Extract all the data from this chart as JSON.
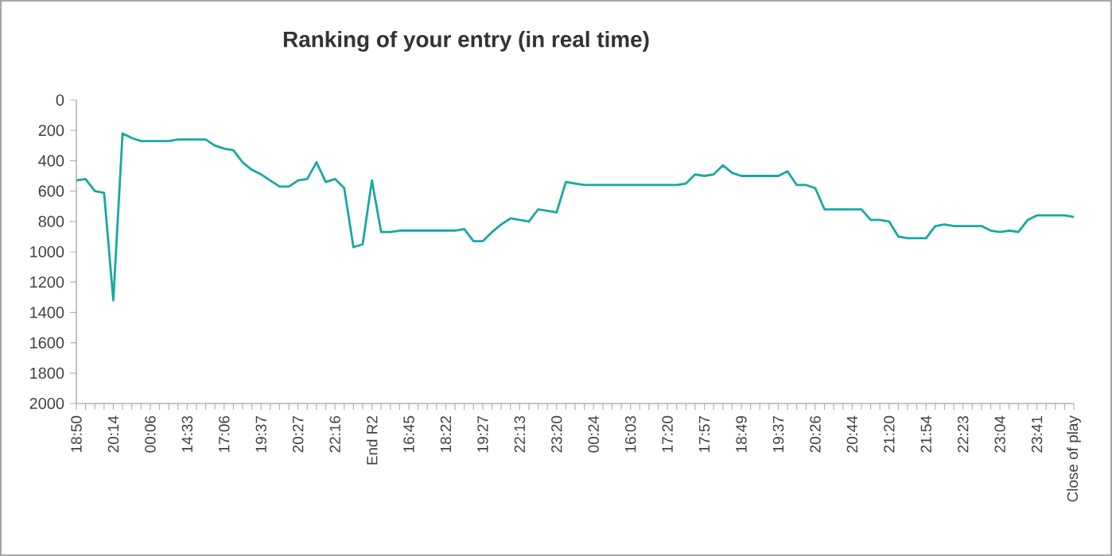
{
  "chart_data": {
    "type": "line",
    "title": "Ranking of your entry (in real time)",
    "categories": [
      "18:50",
      null,
      null,
      null,
      "20:14",
      null,
      null,
      null,
      "00:06",
      null,
      null,
      null,
      "14:33",
      null,
      null,
      null,
      "17:06",
      null,
      null,
      null,
      "19:37",
      null,
      null,
      null,
      "20:27",
      null,
      null,
      null,
      "22:16",
      null,
      null,
      null,
      "End R2",
      null,
      null,
      null,
      "16:45",
      null,
      null,
      null,
      "18:22",
      null,
      null,
      null,
      "19:27",
      null,
      null,
      null,
      "22:13",
      null,
      null,
      null,
      "23:20",
      null,
      null,
      null,
      "00:24",
      null,
      null,
      null,
      "16:03",
      null,
      null,
      null,
      "17:20",
      null,
      null,
      null,
      "17:57",
      null,
      null,
      null,
      "18:49",
      null,
      null,
      null,
      "19:37",
      null,
      null,
      null,
      "20:26",
      null,
      null,
      null,
      "20:44",
      null,
      null,
      null,
      "21:20",
      null,
      null,
      null,
      "21:54",
      null,
      null,
      null,
      "22:23",
      null,
      null,
      null,
      "23:04",
      null,
      null,
      null,
      "23:41",
      null,
      null,
      null,
      "Close of play"
    ],
    "series": [
      {
        "color": "#17a8a3",
        "values": [
          530,
          520,
          600,
          610,
          1320,
          220,
          250,
          270,
          270,
          270,
          270,
          260,
          260,
          260,
          260,
          300,
          320,
          330,
          410,
          460,
          490,
          530,
          570,
          570,
          530,
          520,
          410,
          540,
          520,
          580,
          970,
          950,
          530,
          870,
          870,
          860,
          860,
          860,
          860,
          860,
          860,
          860,
          850,
          930,
          930,
          870,
          820,
          780,
          790,
          800,
          720,
          730,
          740,
          540,
          550,
          560,
          560,
          560,
          560,
          560,
          560,
          560,
          560,
          560,
          560,
          560,
          550,
          490,
          500,
          490,
          430,
          480,
          500,
          500,
          500,
          500,
          500,
          470,
          560,
          560,
          580,
          720,
          720,
          720,
          720,
          720,
          790,
          790,
          800,
          900,
          910,
          910,
          910,
          830,
          820,
          830,
          830,
          830,
          830,
          860,
          870,
          860,
          870,
          790,
          760,
          760,
          760,
          760,
          770
        ]
      }
    ],
    "ylim": [
      2000,
      0
    ],
    "yticks": [
      0,
      200,
      400,
      600,
      800,
      1000,
      1200,
      1400,
      1600,
      1800,
      2000
    ],
    "marker": "none",
    "line_style": "solid"
  }
}
